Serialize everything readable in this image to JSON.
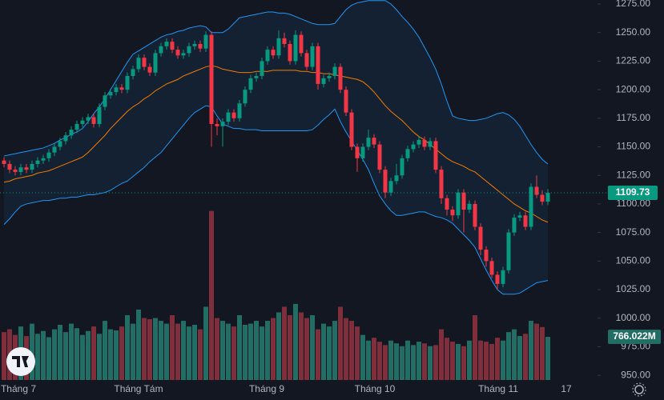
{
  "chart_data": {
    "type": "candlestick",
    "candles": [
      [
        1138,
        1141,
        1132,
        1135
      ],
      [
        1135,
        1138,
        1127,
        1130
      ],
      [
        1130,
        1133,
        1125,
        1128
      ],
      [
        1128,
        1135,
        1125,
        1132
      ],
      [
        1132,
        1135,
        1127,
        1130
      ],
      [
        1130,
        1138,
        1127,
        1135
      ],
      [
        1135,
        1141,
        1132,
        1138
      ],
      [
        1138,
        1143,
        1135,
        1140
      ],
      [
        1140,
        1148,
        1137,
        1145
      ],
      [
        1145,
        1153,
        1142,
        1150
      ],
      [
        1150,
        1158,
        1147,
        1155
      ],
      [
        1155,
        1163,
        1152,
        1160
      ],
      [
        1160,
        1168,
        1157,
        1165
      ],
      [
        1165,
        1173,
        1162,
        1170
      ],
      [
        1170,
        1176,
        1167,
        1173
      ],
      [
        1173,
        1179,
        1170,
        1176
      ],
      [
        1176,
        1179,
        1167,
        1170
      ],
      [
        1170,
        1188,
        1167,
        1185
      ],
      [
        1185,
        1198,
        1182,
        1195
      ],
      [
        1195,
        1201,
        1192,
        1198
      ],
      [
        1198,
        1205,
        1195,
        1202
      ],
      [
        1202,
        1205,
        1197,
        1200
      ],
      [
        1200,
        1215,
        1197,
        1212
      ],
      [
        1212,
        1221,
        1209,
        1218
      ],
      [
        1218,
        1231,
        1215,
        1228
      ],
      [
        1228,
        1231,
        1217,
        1220
      ],
      [
        1220,
        1223,
        1212,
        1215
      ],
      [
        1215,
        1235,
        1212,
        1232
      ],
      [
        1232,
        1241,
        1229,
        1238
      ],
      [
        1238,
        1245,
        1235,
        1242
      ],
      [
        1242,
        1245,
        1232,
        1235
      ],
      [
        1235,
        1238,
        1227,
        1230
      ],
      [
        1230,
        1235,
        1227,
        1232
      ],
      [
        1232,
        1241,
        1229,
        1238
      ],
      [
        1238,
        1243,
        1235,
        1240
      ],
      [
        1240,
        1243,
        1233,
        1236
      ],
      [
        1236,
        1251,
        1233,
        1248
      ],
      [
        1248,
        1251,
        1150,
        1170
      ],
      [
        1170,
        1175,
        1160,
        1168
      ],
      [
        1168,
        1175,
        1150,
        1172
      ],
      [
        1172,
        1183,
        1169,
        1180
      ],
      [
        1180,
        1183,
        1172,
        1175
      ],
      [
        1175,
        1191,
        1172,
        1188
      ],
      [
        1188,
        1203,
        1185,
        1200
      ],
      [
        1200,
        1213,
        1197,
        1210
      ],
      [
        1210,
        1215,
        1207,
        1212
      ],
      [
        1212,
        1228,
        1209,
        1225
      ],
      [
        1225,
        1238,
        1222,
        1235
      ],
      [
        1235,
        1238,
        1227,
        1230
      ],
      [
        1230,
        1252,
        1227,
        1245
      ],
      [
        1245,
        1250,
        1237,
        1240
      ],
      [
        1240,
        1243,
        1222,
        1225
      ],
      [
        1225,
        1252,
        1222,
        1248
      ],
      [
        1248,
        1251,
        1229,
        1232
      ],
      [
        1232,
        1235,
        1217,
        1220
      ],
      [
        1220,
        1241,
        1217,
        1238
      ],
      [
        1238,
        1241,
        1200,
        1205
      ],
      [
        1205,
        1213,
        1202,
        1210
      ],
      [
        1210,
        1215,
        1207,
        1212
      ],
      [
        1212,
        1223,
        1209,
        1220
      ],
      [
        1220,
        1223,
        1197,
        1200
      ],
      [
        1200,
        1203,
        1177,
        1180
      ],
      [
        1180,
        1183,
        1147,
        1150
      ],
      [
        1150,
        1153,
        1128,
        1140
      ],
      [
        1140,
        1153,
        1137,
        1150
      ],
      [
        1150,
        1165,
        1147,
        1158
      ],
      [
        1158,
        1161,
        1149,
        1152
      ],
      [
        1152,
        1155,
        1127,
        1130
      ],
      [
        1130,
        1133,
        1105,
        1110
      ],
      [
        1110,
        1123,
        1107,
        1120
      ],
      [
        1120,
        1135,
        1117,
        1125
      ],
      [
        1125,
        1143,
        1122,
        1140
      ],
      [
        1140,
        1151,
        1137,
        1148
      ],
      [
        1148,
        1155,
        1145,
        1152
      ],
      [
        1152,
        1159,
        1149,
        1156
      ],
      [
        1156,
        1159,
        1147,
        1150
      ],
      [
        1150,
        1158,
        1147,
        1155
      ],
      [
        1155,
        1158,
        1127,
        1130
      ],
      [
        1130,
        1133,
        1100,
        1105
      ],
      [
        1105,
        1108,
        1090,
        1095
      ],
      [
        1095,
        1098,
        1085,
        1090
      ],
      [
        1090,
        1113,
        1087,
        1110
      ],
      [
        1110,
        1113,
        1075,
        1095
      ],
      [
        1095,
        1103,
        1092,
        1100
      ],
      [
        1100,
        1103,
        1077,
        1080
      ],
      [
        1080,
        1083,
        1055,
        1060
      ],
      [
        1060,
        1063,
        1045,
        1050
      ],
      [
        1050,
        1053,
        1035,
        1038
      ],
      [
        1038,
        1041,
        1025,
        1030
      ],
      [
        1030,
        1045,
        1027,
        1042
      ],
      [
        1042,
        1078,
        1039,
        1075
      ],
      [
        1075,
        1091,
        1072,
        1088
      ],
      [
        1088,
        1093,
        1085,
        1090
      ],
      [
        1090,
        1093,
        1077,
        1080
      ],
      [
        1080,
        1118,
        1077,
        1115
      ],
      [
        1115,
        1125,
        1105,
        1108
      ],
      [
        1108,
        1112,
        1099,
        1102
      ],
      [
        1102,
        1113,
        1099,
        1109.73
      ]
    ],
    "upper_band": [
      1142,
      1143,
      1144,
      1145,
      1146,
      1147,
      1148,
      1149,
      1151,
      1153,
      1156,
      1158,
      1161,
      1163,
      1166,
      1172,
      1179,
      1185,
      1192,
      1200,
      1208,
      1216,
      1224,
      1231,
      1234,
      1237,
      1240,
      1243,
      1246,
      1248,
      1249,
      1251,
      1252,
      1254,
      1255,
      1256,
      1255,
      1250,
      1250,
      1250,
      1253,
      1258,
      1263,
      1264,
      1265,
      1266,
      1267,
      1268,
      1268,
      1267,
      1267,
      1266,
      1264,
      1262,
      1260,
      1258,
      1257,
      1257,
      1257,
      1258,
      1264,
      1270,
      1274,
      1276,
      1277,
      1278,
      1278,
      1278,
      1278,
      1275,
      1270,
      1264,
      1259,
      1253,
      1246,
      1237,
      1228,
      1218,
      1205,
      1190,
      1177,
      1175,
      1174,
      1173,
      1173,
      1174,
      1175,
      1177,
      1179,
      1180,
      1178,
      1174,
      1168,
      1160,
      1152,
      1145,
      1139,
      1135
    ],
    "middle_band": [
      1119,
      1120,
      1122,
      1123,
      1124,
      1125,
      1127,
      1128,
      1129,
      1131,
      1133,
      1135,
      1137,
      1139,
      1141,
      1145,
      1150,
      1155,
      1160,
      1166,
      1171,
      1176,
      1181,
      1185,
      1188,
      1192,
      1195,
      1199,
      1202,
      1205,
      1207,
      1209,
      1212,
      1214,
      1216,
      1218,
      1220,
      1221,
      1220,
      1218,
      1217,
      1216,
      1215,
      1215,
      1215,
      1216,
      1216,
      1216,
      1217,
      1217,
      1217,
      1217,
      1217,
      1216,
      1216,
      1215,
      1215,
      1214,
      1214,
      1213,
      1212,
      1211,
      1210,
      1209,
      1207,
      1203,
      1198,
      1192,
      1186,
      1181,
      1177,
      1173,
      1168,
      1163,
      1159,
      1156,
      1152,
      1148,
      1144,
      1140,
      1137,
      1135,
      1133,
      1130,
      1128,
      1124,
      1120,
      1116,
      1112,
      1108,
      1104,
      1100,
      1097,
      1094,
      1092,
      1089,
      1086,
      1084
    ],
    "lower_band": [
      1082,
      1087,
      1093,
      1098,
      1100,
      1101,
      1102,
      1103,
      1103,
      1104,
      1105,
      1105,
      1106,
      1106,
      1107,
      1108,
      1108,
      1109,
      1110,
      1112,
      1115,
      1118,
      1120,
      1124,
      1128,
      1132,
      1137,
      1141,
      1145,
      1151,
      1157,
      1163,
      1169,
      1175,
      1180,
      1183,
      1186,
      1185,
      1177,
      1170,
      1168,
      1166,
      1166,
      1165,
      1165,
      1165,
      1164,
      1164,
      1164,
      1164,
      1164,
      1164,
      1164,
      1164,
      1164,
      1165,
      1169,
      1174,
      1178,
      1183,
      1172,
      1163,
      1155,
      1147,
      1139,
      1130,
      1118,
      1107,
      1100,
      1094,
      1090,
      1090,
      1091,
      1092,
      1093,
      1093,
      1091,
      1089,
      1088,
      1086,
      1083,
      1078,
      1073,
      1068,
      1062,
      1052,
      1042,
      1033,
      1025,
      1021,
      1021,
      1021,
      1022,
      1025,
      1028,
      1031,
      1032,
      1033
    ],
    "volume": [
      850,
      900,
      800,
      950,
      780,
      1000,
      820,
      870,
      760,
      900,
      980,
      850,
      1000,
      920,
      800,
      870,
      950,
      820,
      1050,
      900,
      880,
      950,
      1150,
      1000,
      1250,
      1100,
      1080,
      1100,
      1050,
      1000,
      1150,
      1000,
      1050,
      950,
      980,
      900,
      1300,
      3000,
      1100,
      1050,
      1000,
      950,
      1150,
      980,
      1000,
      1050,
      950,
      1050,
      1100,
      1200,
      1300,
      1150,
      1350,
      1200,
      1100,
      1150,
      900,
      1000,
      950,
      1050,
      1300,
      1100,
      1050,
      950,
      800,
      700,
      750,
      680,
      620,
      700,
      650,
      600,
      700,
      620,
      680,
      650,
      600,
      620,
      900,
      750,
      680,
      640,
      600,
      700,
      1150,
      700,
      680,
      640,
      750,
      700,
      850,
      900,
      780,
      820,
      1050,
      1000,
      940,
      766.022
    ],
    "volume_label": "766.022M",
    "ylim": [
      945.9,
      1278.5
    ],
    "vlim": [
      0,
      6745
    ],
    "yticks": [
      {
        "value": 950,
        "label": "950.00"
      },
      {
        "value": 975,
        "label": "975.00"
      },
      {
        "value": 1000,
        "label": "1000.00"
      },
      {
        "value": 1025,
        "label": "1025.00"
      },
      {
        "value": 1050,
        "label": "1050.00"
      },
      {
        "value": 1075,
        "label": "1075.00"
      },
      {
        "value": 1100,
        "label": "1100.00"
      },
      {
        "value": 1125,
        "label": "1125.00"
      },
      {
        "value": 1150,
        "label": "1150.00"
      },
      {
        "value": 1175,
        "label": "1175.00"
      },
      {
        "value": 1200,
        "label": "1200.00"
      },
      {
        "value": 1225,
        "label": "1225.00"
      },
      {
        "value": 1250,
        "label": "1250.00"
      },
      {
        "value": 1275,
        "label": "1275.00"
      }
    ],
    "xticks": [
      "Tháng 7",
      "Tháng Tám",
      "Tháng 9",
      "Tháng 10",
      "Tháng 11",
      "17"
    ],
    "colors": {
      "up": "#089981",
      "down": "#f23645",
      "volume_up": "#226e65",
      "volume_down": "#7f2f3b",
      "band": "#2196f3",
      "middle": "#f57c00",
      "background": "#131722"
    }
  }
}
